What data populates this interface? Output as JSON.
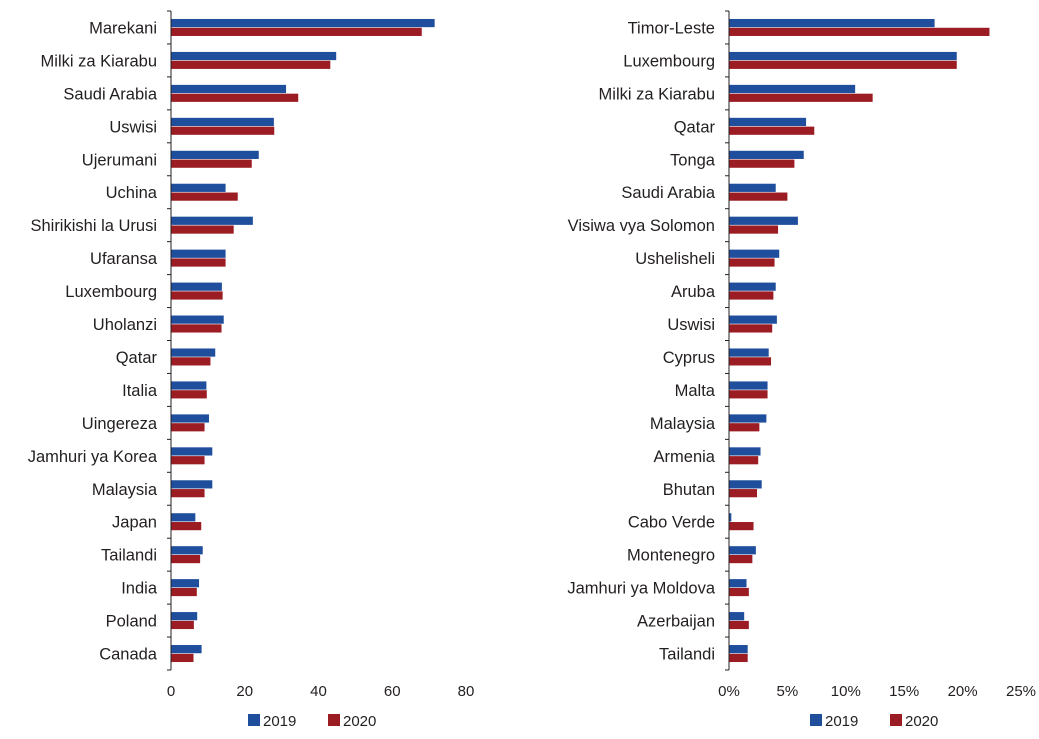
{
  "colors": {
    "series_2019": "#1f4e9c",
    "series_2020": "#9c1c24",
    "axis": "#231f20",
    "text": "#231f20",
    "background": "#ffffff"
  },
  "chart_data": [
    {
      "type": "bar",
      "orientation": "horizontal",
      "categories": [
        "Marekani",
        "Milki za Kiarabu",
        "Saudi Arabia",
        "Uswisi",
        "Ujerumani",
        "Uchina",
        "Shirikishi la Urusi",
        "Ufaransa",
        "Luxembourg",
        "Uholanzi",
        "Qatar",
        "Italia",
        "Uingereza",
        "Jamhuri ya Korea",
        "Malaysia",
        "Japan",
        "Tailandi",
        "India",
        "Poland",
        "Canada"
      ],
      "series": [
        {
          "name": "2019",
          "values": [
            71.5,
            44.8,
            31.2,
            27.9,
            23.8,
            14.8,
            22.2,
            14.8,
            13.8,
            14.3,
            12.0,
            9.6,
            10.3,
            11.2,
            11.2,
            6.6,
            8.6,
            7.6,
            7.1,
            8.3
          ]
        },
        {
          "name": "2020",
          "values": [
            68.0,
            43.2,
            34.5,
            28.0,
            21.9,
            18.1,
            17.0,
            14.8,
            14.0,
            13.7,
            10.7,
            9.7,
            9.1,
            9.1,
            9.1,
            8.2,
            7.9,
            7.0,
            6.2,
            6.1
          ]
        }
      ],
      "xlim": [
        0,
        80
      ],
      "xticks": [
        "0",
        "20",
        "40",
        "60",
        "80"
      ],
      "legend": [
        "2019",
        "2020"
      ],
      "legend_position": "bottom",
      "grid": false
    },
    {
      "type": "bar",
      "orientation": "horizontal",
      "categories": [
        "Timor-Leste",
        "Luxembourg",
        "Milki za Kiarabu",
        "Qatar",
        "Tonga",
        "Saudi Arabia",
        "Visiwa vya Solomon",
        "Ushelisheli",
        "Aruba",
        "Uswisi",
        "Cyprus",
        "Malta",
        "Malaysia",
        "Armenia",
        "Bhutan",
        "Cabo Verde",
        "Montenegro",
        "Jamhuri ya Moldova",
        "Azerbaijan",
        "Tailandi"
      ],
      "series": [
        {
          "name": "2019",
          "values": [
            17.6,
            19.5,
            10.8,
            6.6,
            6.4,
            4.0,
            5.9,
            4.3,
            4.0,
            4.1,
            3.4,
            3.3,
            3.2,
            2.7,
            2.8,
            0.2,
            2.3,
            1.5,
            1.3,
            1.6
          ]
        },
        {
          "name": "2020",
          "values": [
            22.3,
            19.5,
            12.3,
            7.3,
            5.6,
            5.0,
            4.2,
            3.9,
            3.8,
            3.7,
            3.6,
            3.3,
            2.6,
            2.5,
            2.4,
            2.1,
            2.0,
            1.7,
            1.7,
            1.6
          ]
        }
      ],
      "xlim": [
        0,
        25
      ],
      "xticks": [
        "0%",
        "5%",
        "10%",
        "15%",
        "20%",
        "25%"
      ],
      "legend": [
        "2019",
        "2020"
      ],
      "legend_position": "bottom",
      "grid": false
    }
  ]
}
